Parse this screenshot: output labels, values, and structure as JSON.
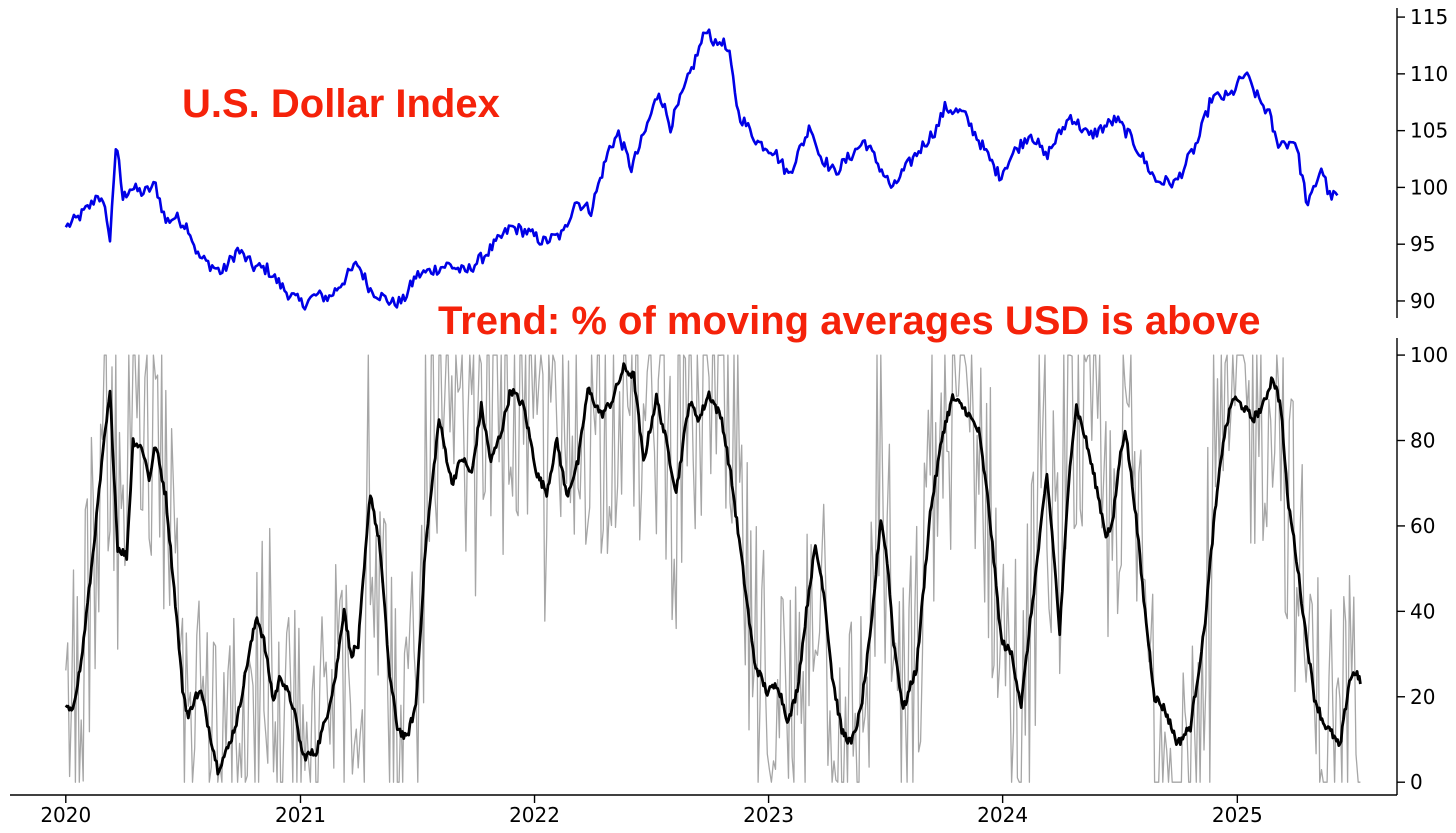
{
  "chart_data": [
    {
      "type": "line",
      "title": "U.S. Dollar Index",
      "title_color": "#f5220a",
      "xlabel": "",
      "ylabel": "",
      "ylim": [
        88.5,
        115.8
      ],
      "yticks": [
        90,
        95,
        100,
        105,
        110,
        115
      ],
      "y_axis_side": "right",
      "grid": false,
      "series": [
        {
          "color": "#0000e6",
          "points": [
            [
              "2020-01-01",
              96.5
            ],
            [
              "2020-01-20",
              97.3
            ],
            [
              "2020-02-10",
              98.5
            ],
            [
              "2020-02-20",
              99.5
            ],
            [
              "2020-03-05",
              97.5
            ],
            [
              "2020-03-10",
              95.0
            ],
            [
              "2020-03-13",
              98.5
            ],
            [
              "2020-03-19",
              103.5
            ],
            [
              "2020-03-24",
              102.0
            ],
            [
              "2020-03-30",
              99.0
            ],
            [
              "2020-04-10",
              100.0
            ],
            [
              "2020-05-01",
              99.5
            ],
            [
              "2020-05-20",
              100.2
            ],
            [
              "2020-06-05",
              97.0
            ],
            [
              "2020-06-20",
              97.4
            ],
            [
              "2020-07-10",
              96.5
            ],
            [
              "2020-07-25",
              94.0
            ],
            [
              "2020-08-10",
              93.3
            ],
            [
              "2020-09-01",
              92.5
            ],
            [
              "2020-09-25",
              94.5
            ],
            [
              "2020-10-20",
              93.0
            ],
            [
              "2020-11-10",
              92.8
            ],
            [
              "2020-12-10",
              90.8
            ],
            [
              "2021-01-05",
              89.7
            ],
            [
              "2021-01-25",
              90.5
            ],
            [
              "2021-02-15",
              90.3
            ],
            [
              "2021-03-31",
              93.3
            ],
            [
              "2021-04-20",
              91.0
            ],
            [
              "2021-05-25",
              89.8
            ],
            [
              "2021-06-10",
              90.0
            ],
            [
              "2021-06-30",
              92.2
            ],
            [
              "2021-08-20",
              93.2
            ],
            [
              "2021-09-15",
              92.5
            ],
            [
              "2021-10-15",
              94.0
            ],
            [
              "2021-11-25",
              96.5
            ],
            [
              "2021-12-20",
              96.1
            ],
            [
              "2022-01-15",
              95.2
            ],
            [
              "2022-02-15",
              95.9
            ],
            [
              "2022-03-05",
              98.8
            ],
            [
              "2022-03-30",
              98.0
            ],
            [
              "2022-04-28",
              103.5
            ],
            [
              "2022-05-12",
              104.7
            ],
            [
              "2022-06-01",
              101.7
            ],
            [
              "2022-06-20",
              104.5
            ],
            [
              "2022-07-14",
              108.5
            ],
            [
              "2022-08-01",
              105.4
            ],
            [
              "2022-08-25",
              109.0
            ],
            [
              "2022-09-27",
              114.1
            ],
            [
              "2022-10-10",
              112.5
            ],
            [
              "2022-10-20",
              113.0
            ],
            [
              "2022-11-01",
              111.5
            ],
            [
              "2022-11-15",
              106.5
            ],
            [
              "2022-12-15",
              104.0
            ],
            [
              "2023-01-10",
              103.2
            ],
            [
              "2023-02-01",
              101.1
            ],
            [
              "2023-03-08",
              105.5
            ],
            [
              "2023-03-20",
              103.0
            ],
            [
              "2023-04-14",
              101.3
            ],
            [
              "2023-05-31",
              104.1
            ],
            [
              "2023-07-14",
              99.8
            ],
            [
              "2023-07-25",
              101.0
            ],
            [
              "2023-08-20",
              103.0
            ],
            [
              "2023-09-20",
              105.2
            ],
            [
              "2023-10-03",
              107.0
            ],
            [
              "2023-11-01",
              106.5
            ],
            [
              "2023-12-27",
              101.0
            ],
            [
              "2024-01-20",
              103.2
            ],
            [
              "2024-02-14",
              104.8
            ],
            [
              "2024-03-08",
              102.7
            ],
            [
              "2024-04-16",
              106.3
            ],
            [
              "2024-05-15",
              104.5
            ],
            [
              "2024-06-26",
              106.0
            ],
            [
              "2024-07-20",
              104.3
            ],
            [
              "2024-08-27",
              100.6
            ],
            [
              "2024-09-27",
              100.4
            ],
            [
              "2024-10-31",
              104.0
            ],
            [
              "2024-11-22",
              107.9
            ],
            [
              "2024-12-20",
              108.0
            ],
            [
              "2025-01-13",
              110.0
            ],
            [
              "2025-02-01",
              108.0
            ],
            [
              "2025-02-20",
              106.4
            ],
            [
              "2025-03-03",
              104.0
            ],
            [
              "2025-03-20",
              103.9
            ],
            [
              "2025-04-01",
              104.2
            ],
            [
              "2025-04-21",
              98.3
            ],
            [
              "2025-05-12",
              101.8
            ],
            [
              "2025-05-25",
              99.2
            ],
            [
              "2025-06-06",
              99.3
            ]
          ]
        }
      ]
    },
    {
      "type": "line",
      "title": "Trend: % of moving averages USD is above",
      "title_color": "#f5220a",
      "xlabel": "",
      "ylabel": "",
      "ylim": [
        -3,
        104
      ],
      "yticks": [
        0,
        20,
        40,
        60,
        80,
        100
      ],
      "y_axis_side": "right",
      "grid": false,
      "x_ticks": [
        "2020",
        "2021",
        "2022",
        "2023",
        "2024",
        "2025"
      ],
      "x_range": [
        "2019-10-06",
        "2025-09-07"
      ],
      "series": [
        {
          "color": "#000000",
          "style": "smoothed",
          "points": [
            [
              "2020-01-01",
              18
            ],
            [
              "2020-01-10",
              16
            ],
            [
              "2020-01-25",
              28
            ],
            [
              "2020-02-10",
              50
            ],
            [
              "2020-03-01",
              80
            ],
            [
              "2020-03-10",
              91
            ],
            [
              "2020-03-22",
              55
            ],
            [
              "2020-04-05",
              53
            ],
            [
              "2020-04-15",
              80
            ],
            [
              "2020-04-30",
              78
            ],
            [
              "2020-05-10",
              71
            ],
            [
              "2020-05-20",
              79
            ],
            [
              "2020-06-05",
              67
            ],
            [
              "2020-06-20",
              42
            ],
            [
              "2020-07-01",
              22
            ],
            [
              "2020-07-10",
              15
            ],
            [
              "2020-07-20",
              20
            ],
            [
              "2020-07-30",
              21
            ],
            [
              "2020-08-15",
              10
            ],
            [
              "2020-08-25",
              3
            ],
            [
              "2020-09-10",
              8
            ],
            [
              "2020-09-25",
              15
            ],
            [
              "2020-10-10",
              28
            ],
            [
              "2020-10-25",
              39
            ],
            [
              "2020-11-05",
              33
            ],
            [
              "2020-11-20",
              19
            ],
            [
              "2020-12-01",
              25
            ],
            [
              "2020-12-20",
              18
            ],
            [
              "2021-01-05",
              6
            ],
            [
              "2021-01-25",
              7
            ],
            [
              "2021-02-10",
              15
            ],
            [
              "2021-02-25",
              25
            ],
            [
              "2021-03-10",
              41
            ],
            [
              "2021-03-20",
              30
            ],
            [
              "2021-04-01",
              32
            ],
            [
              "2021-04-20",
              68
            ],
            [
              "2021-05-05",
              55
            ],
            [
              "2021-05-20",
              25
            ],
            [
              "2021-06-01",
              13
            ],
            [
              "2021-06-15",
              10
            ],
            [
              "2021-06-30",
              18
            ],
            [
              "2021-07-15",
              55
            ],
            [
              "2021-08-05",
              85
            ],
            [
              "2021-08-25",
              70
            ],
            [
              "2021-09-10",
              76
            ],
            [
              "2021-09-25",
              72
            ],
            [
              "2021-10-10",
              88
            ],
            [
              "2021-10-25",
              75
            ],
            [
              "2021-11-10",
              82
            ],
            [
              "2021-11-25",
              92
            ],
            [
              "2021-12-15",
              88
            ],
            [
              "2022-01-05",
              72
            ],
            [
              "2022-01-20",
              68
            ],
            [
              "2022-02-05",
              80
            ],
            [
              "2022-02-20",
              67
            ],
            [
              "2022-03-10",
              75
            ],
            [
              "2022-03-25",
              92
            ],
            [
              "2022-04-15",
              86
            ],
            [
              "2022-05-01",
              89
            ],
            [
              "2022-05-20",
              97
            ],
            [
              "2022-06-05",
              95
            ],
            [
              "2022-06-20",
              75
            ],
            [
              "2022-07-10",
              90
            ],
            [
              "2022-07-25",
              80
            ],
            [
              "2022-08-10",
              68
            ],
            [
              "2022-08-30",
              89
            ],
            [
              "2022-09-15",
              85
            ],
            [
              "2022-09-30",
              91
            ],
            [
              "2022-10-20",
              85
            ],
            [
              "2022-11-05",
              70
            ],
            [
              "2022-11-20",
              52
            ],
            [
              "2022-12-10",
              28
            ],
            [
              "2022-12-30",
              21
            ],
            [
              "2023-01-15",
              23
            ],
            [
              "2023-02-01",
              14
            ],
            [
              "2023-02-15",
              22
            ],
            [
              "2023-03-05",
              45
            ],
            [
              "2023-03-15",
              55
            ],
            [
              "2023-03-28",
              45
            ],
            [
              "2023-04-10",
              25
            ],
            [
              "2023-04-25",
              12
            ],
            [
              "2023-05-10",
              9
            ],
            [
              "2023-05-25",
              17
            ],
            [
              "2023-06-10",
              36
            ],
            [
              "2023-06-25",
              62
            ],
            [
              "2023-07-05",
              52
            ],
            [
              "2023-07-15",
              33
            ],
            [
              "2023-07-30",
              17
            ],
            [
              "2023-08-20",
              27
            ],
            [
              "2023-09-10",
              63
            ],
            [
              "2023-09-30",
              82
            ],
            [
              "2023-10-15",
              90
            ],
            [
              "2023-11-05",
              87
            ],
            [
              "2023-11-25",
              82
            ],
            [
              "2023-12-10",
              65
            ],
            [
              "2023-12-30",
              33
            ],
            [
              "2024-01-15",
              30
            ],
            [
              "2024-01-30",
              18
            ],
            [
              "2024-02-15",
              40
            ],
            [
              "2024-03-01",
              60
            ],
            [
              "2024-03-10",
              72
            ],
            [
              "2024-03-20",
              55
            ],
            [
              "2024-03-30",
              35
            ],
            [
              "2024-04-15",
              75
            ],
            [
              "2024-04-25",
              88
            ],
            [
              "2024-05-10",
              80
            ],
            [
              "2024-05-25",
              70
            ],
            [
              "2024-06-10",
              58
            ],
            [
              "2024-06-20",
              60
            ],
            [
              "2024-07-01",
              75
            ],
            [
              "2024-07-10",
              83
            ],
            [
              "2024-07-25",
              65
            ],
            [
              "2024-08-10",
              40
            ],
            [
              "2024-08-25",
              20
            ],
            [
              "2024-09-10",
              17
            ],
            [
              "2024-09-30",
              9
            ],
            [
              "2024-10-20",
              13
            ],
            [
              "2024-11-10",
              35
            ],
            [
              "2024-11-25",
              60
            ],
            [
              "2024-12-10",
              80
            ],
            [
              "2024-12-25",
              90
            ],
            [
              "2025-01-10",
              88
            ],
            [
              "2025-01-25",
              85
            ],
            [
              "2025-02-10",
              88
            ],
            [
              "2025-02-25",
              95
            ],
            [
              "2025-03-10",
              88
            ],
            [
              "2025-03-20",
              67
            ],
            [
              "2025-04-01",
              55
            ],
            [
              "2025-04-15",
              38
            ],
            [
              "2025-05-01",
              20
            ],
            [
              "2025-05-15",
              14
            ],
            [
              "2025-05-30",
              11
            ],
            [
              "2025-06-10",
              8
            ],
            [
              "2025-06-25",
              24
            ],
            [
              "2025-07-05",
              26
            ],
            [
              "2025-07-12",
              23
            ]
          ]
        },
        {
          "color": "#a6a6a6",
          "style": "raw-daily",
          "note_source": "derived-from-smoothed"
        }
      ]
    }
  ]
}
